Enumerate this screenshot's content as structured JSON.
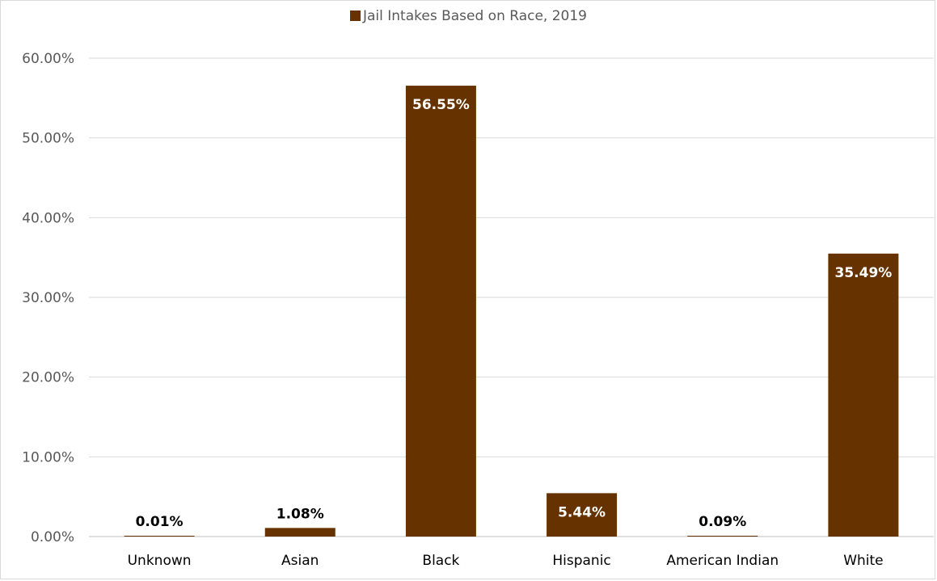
{
  "chart_data": {
    "type": "bar",
    "legend": {
      "entries": [
        "Jail Intakes Based on Race, 2019"
      ],
      "position": "top"
    },
    "series": [
      {
        "name": "Jail Intakes Based on Race, 2019",
        "values": [
          0.01,
          1.08,
          56.55,
          5.44,
          0.09,
          35.49
        ]
      }
    ],
    "categories": [
      "Unknown",
      "Asian",
      "Black",
      "Hispanic",
      "American Indian",
      "White"
    ],
    "data_labels": [
      "0.01%",
      "1.08%",
      "56.55%",
      "5.44%",
      "0.09%",
      "35.49%"
    ],
    "y_ticks": [
      "0.00%",
      "10.00%",
      "20.00%",
      "30.00%",
      "40.00%",
      "50.00%",
      "60.00%"
    ],
    "ylim": [
      0,
      60
    ],
    "grid": true,
    "colors": {
      "bar": "#663300",
      "grid": "#d9d9d9",
      "axis_text": "#595959",
      "label_inside": "#ffffff",
      "label_outside": "#000000"
    }
  }
}
